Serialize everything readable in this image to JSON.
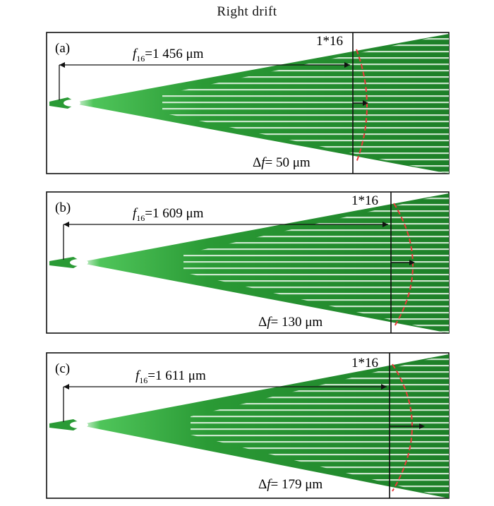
{
  "title": "Right drift",
  "colors": {
    "beam": "#1f8a2b",
    "beam_light": "#5fc466",
    "stripe": "#e8f6e8",
    "dashed": "#e83a3a",
    "frame": "#111111"
  },
  "panels": [
    {
      "label": "(a)",
      "focal_symbol": "f",
      "focal_subscript": "16",
      "focal_value": "=1 456 μm",
      "port_label": "1*16",
      "shift_symbol": "Δ",
      "shift_f": "f",
      "shift_value": "= 50 μm"
    },
    {
      "label": "(b)",
      "focal_symbol": "f",
      "focal_subscript": "16",
      "focal_value": "=1 609 μm",
      "port_label": "1*16",
      "shift_symbol": "Δ",
      "shift_f": "f",
      "shift_value": "= 130 μm"
    },
    {
      "label": "(c)",
      "focal_symbol": "f",
      "focal_subscript": "16",
      "focal_value": "=1 611 μm",
      "port_label": "1*16",
      "shift_symbol": "Δ",
      "shift_f": "f",
      "shift_value": "= 179 μm"
    }
  ]
}
